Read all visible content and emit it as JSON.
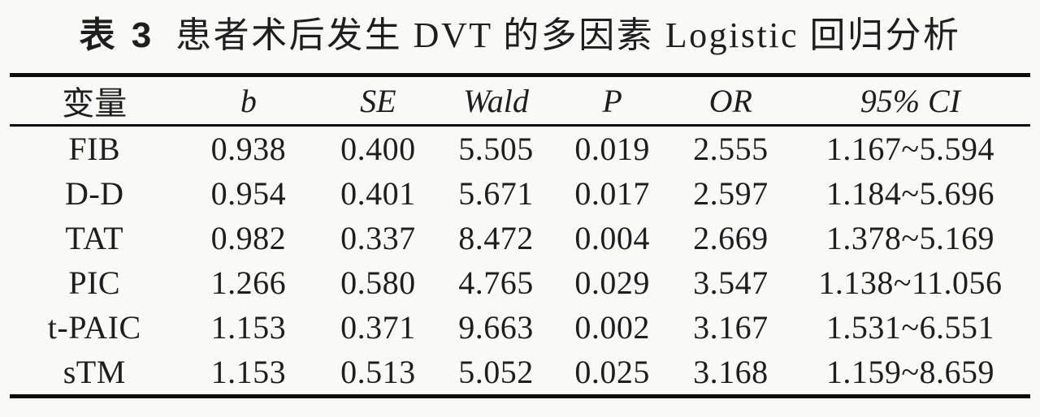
{
  "page": {
    "background": "#f9f9f7",
    "text_color": "#1e1e1e",
    "rule_color": "#0d0d0d"
  },
  "table": {
    "title_prefix": "表 3",
    "title_text": "患者术后发生 DVT 的多因素 Logistic 回归分析",
    "columns": [
      {
        "label": "变量",
        "italic": false
      },
      {
        "label": "b",
        "italic": true
      },
      {
        "label": "SE",
        "italic": true
      },
      {
        "label": "Wald",
        "italic": true
      },
      {
        "label": "P",
        "italic": true
      },
      {
        "label": "OR",
        "italic": true
      },
      {
        "label": "95% CI",
        "italic": true
      }
    ],
    "rows": [
      {
        "variable": "FIB",
        "b": "0.938",
        "se": "0.400",
        "wald": "5.505",
        "p": "0.019",
        "or": "2.555",
        "ci": "1.167~5.594"
      },
      {
        "variable": "D-D",
        "b": "0.954",
        "se": "0.401",
        "wald": "5.671",
        "p": "0.017",
        "or": "2.597",
        "ci": "1.184~5.696"
      },
      {
        "variable": "TAT",
        "b": "0.982",
        "se": "0.337",
        "wald": "8.472",
        "p": "0.004",
        "or": "2.669",
        "ci": "1.378~5.169"
      },
      {
        "variable": "PIC",
        "b": "1.266",
        "se": "0.580",
        "wald": "4.765",
        "p": "0.029",
        "or": "3.547",
        "ci": "1.138~11.056"
      },
      {
        "variable": "t-PAIC",
        "b": "1.153",
        "se": "0.371",
        "wald": "9.663",
        "p": "0.002",
        "or": "3.167",
        "ci": "1.531~6.551"
      },
      {
        "variable": "sTM",
        "b": "1.153",
        "se": "0.513",
        "wald": "5.052",
        "p": "0.025",
        "or": "3.168",
        "ci": "1.159~8.659"
      }
    ]
  }
}
